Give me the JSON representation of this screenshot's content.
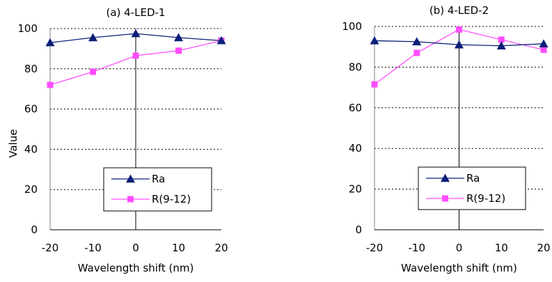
{
  "chart_data": [
    {
      "type": "line",
      "title": "(a) 4-LED-1",
      "xlabel": "Wavelength shift (nm)",
      "ylabel": "Value",
      "x": [
        -20,
        -10,
        0,
        10,
        20
      ],
      "xlim": [
        -20,
        20
      ],
      "ylim": [
        0,
        100
      ],
      "x_ticks": [
        "-20",
        "-10",
        "0",
        "10",
        "20"
      ],
      "y_ticks": [
        "0",
        "20",
        "40",
        "60",
        "80",
        "100"
      ],
      "grid": "horizontal dashed",
      "legend_position": "bottom-right",
      "series": [
        {
          "name": "Ra",
          "values": [
            93,
            95.5,
            97.5,
            95.5,
            94
          ],
          "color": "#0b1f7a",
          "marker": "triangle"
        },
        {
          "name": "R(9-12)",
          "values": [
            72,
            78.5,
            86.5,
            89,
            94
          ],
          "color": "#ff4dff",
          "marker": "square"
        }
      ]
    },
    {
      "type": "line",
      "title": "(b) 4-LED-2",
      "xlabel": "Wavelength shift (nm)",
      "ylabel": "",
      "x": [
        -20,
        -10,
        0,
        10,
        20
      ],
      "xlim": [
        -20,
        20
      ],
      "ylim": [
        0,
        100
      ],
      "x_ticks": [
        "-20",
        "-10",
        "0",
        "10",
        "20"
      ],
      "y_ticks": [
        "0",
        "20",
        "40",
        "60",
        "80",
        "100"
      ],
      "grid": "horizontal dashed",
      "legend_position": "bottom-right",
      "series": [
        {
          "name": "Ra",
          "values": [
            93,
            92.5,
            91,
            90.5,
            91.5
          ],
          "color": "#0b1f7a",
          "marker": "triangle"
        },
        {
          "name": "R(9-12)",
          "values": [
            71.5,
            87,
            98.5,
            93.5,
            88.5
          ],
          "color": "#ff4dff",
          "marker": "square"
        }
      ]
    }
  ]
}
